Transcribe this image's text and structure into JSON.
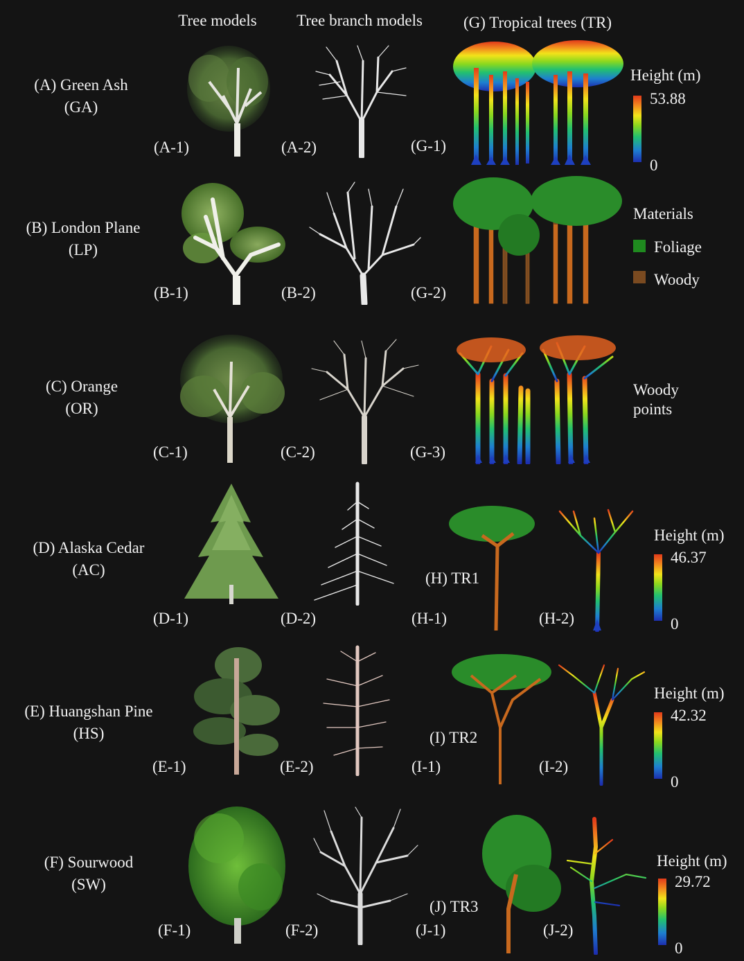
{
  "headers": {
    "tree_models": "Tree models",
    "branch_models": "Tree branch models",
    "tropical": "(G) Tropical  trees (TR)"
  },
  "species": [
    {
      "name": "(A) Green  Ash",
      "abbr": "(GA)",
      "p1": "(A-1)",
      "p2": "(A-2)"
    },
    {
      "name": "(B) London Plane",
      "abbr": "(LP)",
      "p1": "(B-1)",
      "p2": "(B-2)"
    },
    {
      "name": "(C) Orange",
      "abbr": "(OR)",
      "p1": "(C-1)",
      "p2": "(C-2)"
    },
    {
      "name": "(D) Alaska Cedar",
      "abbr": "(AC)",
      "p1": "(D-1)",
      "p2": "(D-2)"
    },
    {
      "name": "(E) Huangshan Pine",
      "abbr": "(HS)",
      "p1": "(E-1)",
      "p2": "(E-2)"
    },
    {
      "name": "(F) Sourwood",
      "abbr": "(SW)",
      "p1": "(F-1)",
      "p2": "(F-2)"
    }
  ],
  "tropical_panels": {
    "g1": "(G-1)",
    "g2": "(G-2)",
    "g3": "(G-3)"
  },
  "legend_height_g": {
    "title": "Height (m)",
    "max": "53.88",
    "min": "0"
  },
  "legend_materials": {
    "title": "Materials",
    "foliage": "Foliage",
    "woody": "Woody",
    "foliage_color": "#1f8a1f",
    "woody_color": "#7a4a20"
  },
  "woody_points": {
    "line1": "Woody",
    "line2": "points"
  },
  "tr_individuals": [
    {
      "name": "(H) TR1",
      "p1": "(H-1)",
      "p2": "(H-2)",
      "legend_title": "Height (m)",
      "max": "46.37",
      "min": "0"
    },
    {
      "name": "(I) TR2",
      "p1": "(I-1)",
      "p2": "(I-2)",
      "legend_title": "Height (m)",
      "max": "42.32",
      "min": "0"
    },
    {
      "name": "(J) TR3",
      "p1": "(J-1)",
      "p2": "(J-2)",
      "legend_title": "Height (m)",
      "max": "29.72",
      "min": "0"
    }
  ],
  "icons": {
    "tree_model": "tree-illustration",
    "branch_model": "branch-skeleton-illustration",
    "point_cloud": "lidar-point-cloud-illustration"
  },
  "colors": {
    "background": "#141414",
    "text": "#f2f2f2"
  }
}
